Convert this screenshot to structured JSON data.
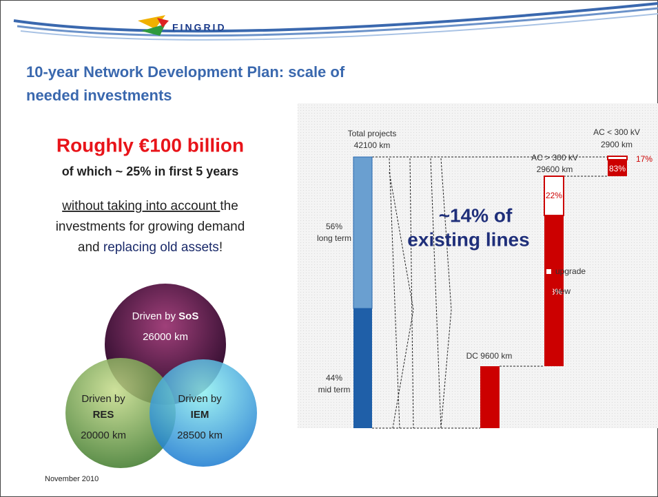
{
  "header": {
    "logo": "FINGRID",
    "title_line1": "10-year Network Development Plan: scale of",
    "title_line2": "needed investments"
  },
  "left": {
    "headline": "Roughly €100 billion",
    "subline": "of which ~ 25% in first 5 years",
    "note_underlined": "without taking into account ",
    "note_rest1": "the",
    "note_line2": "investments for growing demand",
    "note_line3_a": "and ",
    "note_line3_b": "replacing old assets",
    "note_line3_c": "!"
  },
  "venn": {
    "sos": {
      "line1": "Driven by ",
      "bold": "SoS",
      "km": "26000 km"
    },
    "res": {
      "line1": "Driven by",
      "bold": "RES",
      "km": "20000 km"
    },
    "iem": {
      "line1": "Driven by",
      "bold": "IEM",
      "km": "28500 km"
    }
  },
  "diagram": {
    "total": {
      "label": "Total projects",
      "km": "42100 km",
      "long_pct": "56%",
      "long_label": "long term",
      "mid_pct": "44%",
      "mid_label": "mid term"
    },
    "callout_line1": "~14% of",
    "callout_line2": "existing lines",
    "dc": {
      "label": "DC 9600 km"
    },
    "ac_high": {
      "label": "AC > 300 kV",
      "km": "29600 km",
      "upgrade_pct": "22%",
      "new_pct": "78%"
    },
    "ac_low": {
      "label": "AC < 300 kV",
      "km": "2900 km",
      "upgrade_pct": "17%",
      "new_pct": "83%"
    },
    "legend": {
      "upgrade": "upgrade",
      "new": "new"
    }
  },
  "footer": {
    "date": "November 2010"
  }
}
